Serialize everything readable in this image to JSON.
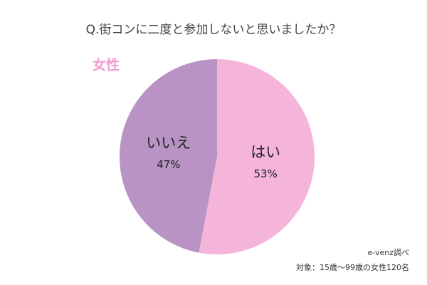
{
  "chart_data": {
    "type": "pie",
    "title": "Q.街コンに二度と参加しないと思いましたか？",
    "subtitle": "女性",
    "categories": [
      "はい",
      "いいえ"
    ],
    "values": [
      53,
      47
    ],
    "value_labels": [
      "53%",
      "47%"
    ],
    "colors": [
      "#f5b5db",
      "#b893c3"
    ],
    "source": "e-venz調べ",
    "note": "対象：15歳〜99歳の女性120名"
  }
}
